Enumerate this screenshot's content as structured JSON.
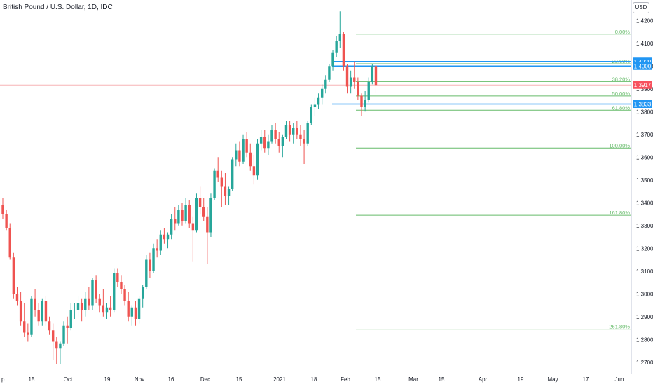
{
  "header": {
    "title": "British Pound / U.S. Dollar, 1D, IDC",
    "currency_button": "USD"
  },
  "colors": {
    "up": "#26a69a",
    "down": "#ef5350",
    "fib": "#66bb6a",
    "level": "#2196f3",
    "last": "#f7525f"
  },
  "chart_data": {
    "type": "candlestick",
    "title": "British Pound / U.S. Dollar, 1D, IDC",
    "ylim": [
      1.265,
      1.429
    ],
    "y_ticks": [
      "1.4200",
      "1.4100",
      "1.4000",
      "1.3900",
      "1.3800",
      "1.3700",
      "1.3600",
      "1.3500",
      "1.3400",
      "1.3300",
      "1.3200",
      "1.3100",
      "1.3000",
      "1.2900",
      "1.2800",
      "1.2700"
    ],
    "x_ticks": [
      "p",
      "15",
      "Oct",
      "19",
      "Nov",
      "16",
      "Dec",
      "15",
      "2021",
      "18",
      "Feb",
      "15",
      "Mar",
      "15",
      "Apr",
      "19",
      "May",
      "17",
      "Jun"
    ],
    "candles": [
      [
        1.339,
        1.342,
        1.333,
        1.335
      ],
      [
        1.335,
        1.337,
        1.328,
        1.329
      ],
      [
        1.329,
        1.331,
        1.315,
        1.316
      ],
      [
        1.316,
        1.318,
        1.298,
        1.3
      ],
      [
        1.3,
        1.303,
        1.295,
        1.297
      ],
      [
        1.297,
        1.301,
        1.286,
        1.288
      ],
      [
        1.288,
        1.296,
        1.281,
        1.283
      ],
      [
        1.283,
        1.287,
        1.279,
        1.282
      ],
      [
        1.282,
        1.299,
        1.281,
        1.298
      ],
      [
        1.298,
        1.302,
        1.29,
        1.293
      ],
      [
        1.293,
        1.296,
        1.286,
        1.288
      ],
      [
        1.288,
        1.298,
        1.286,
        1.297
      ],
      [
        1.297,
        1.299,
        1.286,
        1.288
      ],
      [
        1.288,
        1.29,
        1.282,
        1.284
      ],
      [
        1.284,
        1.287,
        1.271,
        1.279
      ],
      [
        1.279,
        1.281,
        1.269,
        1.276
      ],
      [
        1.276,
        1.279,
        1.269,
        1.278
      ],
      [
        1.278,
        1.288,
        1.277,
        1.286
      ],
      [
        1.286,
        1.29,
        1.278,
        1.285
      ],
      [
        1.285,
        1.296,
        1.284,
        1.293
      ],
      [
        1.293,
        1.296,
        1.289,
        1.293
      ],
      [
        1.293,
        1.299,
        1.29,
        1.296
      ],
      [
        1.296,
        1.298,
        1.288,
        1.293
      ],
      [
        1.293,
        1.301,
        1.29,
        1.298
      ],
      [
        1.298,
        1.303,
        1.293,
        1.295
      ],
      [
        1.295,
        1.307,
        1.293,
        1.306
      ],
      [
        1.306,
        1.308,
        1.296,
        1.298
      ],
      [
        1.298,
        1.3,
        1.292,
        1.295
      ],
      [
        1.295,
        1.302,
        1.29,
        1.292
      ],
      [
        1.292,
        1.296,
        1.289,
        1.294
      ],
      [
        1.294,
        1.299,
        1.29,
        1.293
      ],
      [
        1.293,
        1.311,
        1.292,
        1.309
      ],
      [
        1.309,
        1.311,
        1.303,
        1.305
      ],
      [
        1.305,
        1.308,
        1.3,
        1.302
      ],
      [
        1.302,
        1.304,
        1.295,
        1.297
      ],
      [
        1.297,
        1.301,
        1.288,
        1.29
      ],
      [
        1.29,
        1.295,
        1.286,
        1.294
      ],
      [
        1.294,
        1.297,
        1.286,
        1.289
      ],
      [
        1.289,
        1.299,
        1.287,
        1.298
      ],
      [
        1.298,
        1.304,
        1.294,
        1.303
      ],
      [
        1.303,
        1.317,
        1.302,
        1.315
      ],
      [
        1.315,
        1.318,
        1.307,
        1.31
      ],
      [
        1.31,
        1.322,
        1.309,
        1.32
      ],
      [
        1.32,
        1.324,
        1.316,
        1.319
      ],
      [
        1.319,
        1.328,
        1.317,
        1.326
      ],
      [
        1.326,
        1.329,
        1.322,
        1.324
      ],
      [
        1.324,
        1.327,
        1.32,
        1.326
      ],
      [
        1.326,
        1.335,
        1.324,
        1.333
      ],
      [
        1.333,
        1.338,
        1.328,
        1.331
      ],
      [
        1.331,
        1.339,
        1.33,
        1.337
      ],
      [
        1.337,
        1.34,
        1.33,
        1.332
      ],
      [
        1.332,
        1.342,
        1.331,
        1.339
      ],
      [
        1.339,
        1.341,
        1.329,
        1.331
      ],
      [
        1.331,
        1.334,
        1.314,
        1.328
      ],
      [
        1.328,
        1.344,
        1.327,
        1.342
      ],
      [
        1.342,
        1.347,
        1.335,
        1.338
      ],
      [
        1.338,
        1.342,
        1.332,
        1.334
      ],
      [
        1.334,
        1.338,
        1.313,
        1.327
      ],
      [
        1.327,
        1.344,
        1.325,
        1.342
      ],
      [
        1.342,
        1.355,
        1.341,
        1.354
      ],
      [
        1.354,
        1.36,
        1.349,
        1.351
      ],
      [
        1.351,
        1.354,
        1.338,
        1.347
      ],
      [
        1.347,
        1.353,
        1.339,
        1.343
      ],
      [
        1.343,
        1.347,
        1.339,
        1.346
      ],
      [
        1.346,
        1.36,
        1.345,
        1.359
      ],
      [
        1.359,
        1.366,
        1.356,
        1.363
      ],
      [
        1.363,
        1.367,
        1.356,
        1.358
      ],
      [
        1.358,
        1.37,
        1.357,
        1.368
      ],
      [
        1.368,
        1.371,
        1.36,
        1.362
      ],
      [
        1.362,
        1.366,
        1.354,
        1.356
      ],
      [
        1.356,
        1.361,
        1.348,
        1.352
      ],
      [
        1.352,
        1.368,
        1.35,
        1.366
      ],
      [
        1.366,
        1.372,
        1.363,
        1.369
      ],
      [
        1.369,
        1.372,
        1.362,
        1.364
      ],
      [
        1.364,
        1.37,
        1.361,
        1.367
      ],
      [
        1.367,
        1.374,
        1.366,
        1.372
      ],
      [
        1.372,
        1.375,
        1.366,
        1.368
      ],
      [
        1.368,
        1.371,
        1.362,
        1.365
      ],
      [
        1.365,
        1.37,
        1.36,
        1.369
      ],
      [
        1.369,
        1.376,
        1.368,
        1.374
      ],
      [
        1.374,
        1.376,
        1.367,
        1.37
      ],
      [
        1.37,
        1.375,
        1.366,
        1.373
      ],
      [
        1.373,
        1.376,
        1.368,
        1.37
      ],
      [
        1.37,
        1.374,
        1.365,
        1.368
      ],
      [
        1.368,
        1.372,
        1.357,
        1.366
      ],
      [
        1.366,
        1.376,
        1.365,
        1.375
      ],
      [
        1.375,
        1.383,
        1.374,
        1.382
      ],
      [
        1.382,
        1.386,
        1.378,
        1.383
      ],
      [
        1.383,
        1.388,
        1.381,
        1.386
      ],
      [
        1.386,
        1.392,
        1.383,
        1.39
      ],
      [
        1.39,
        1.396,
        1.388,
        1.394
      ],
      [
        1.394,
        1.401,
        1.393,
        1.4
      ],
      [
        1.4,
        1.407,
        1.398,
        1.406
      ],
      [
        1.406,
        1.413,
        1.404,
        1.411
      ],
      [
        1.411,
        1.424,
        1.408,
        1.414
      ],
      [
        1.414,
        1.415,
        1.398,
        1.4
      ],
      [
        1.4,
        1.401,
        1.388,
        1.391
      ],
      [
        1.391,
        1.398,
        1.388,
        1.395
      ],
      [
        1.395,
        1.402,
        1.39,
        1.393
      ],
      [
        1.393,
        1.395,
        1.385,
        1.387
      ],
      [
        1.387,
        1.388,
        1.378,
        1.382
      ],
      [
        1.382,
        1.389,
        1.38,
        1.385
      ],
      [
        1.385,
        1.395,
        1.384,
        1.393
      ],
      [
        1.393,
        1.401,
        1.392,
        1.4
      ],
      [
        1.4,
        1.401,
        1.388,
        1.3917
      ]
    ],
    "fib_levels": [
      {
        "label": "0.00%",
        "value": 1.414
      },
      {
        "label": "23.60%",
        "value": 1.401
      },
      {
        "label": "38.20%",
        "value": 1.3932
      },
      {
        "label": "50.00%",
        "value": 1.3869
      },
      {
        "label": "61.80%",
        "value": 1.3806
      },
      {
        "label": "100.00%",
        "value": 1.364
      },
      {
        "label": "161.80%",
        "value": 1.3345
      },
      {
        "label": "261.80%",
        "value": 1.2845
      }
    ],
    "horizontal_levels": [
      {
        "label": "1.4020",
        "value": 1.402
      },
      {
        "label": "1.4000",
        "value": 1.4
      },
      {
        "label": "1.3833",
        "value": 1.3833
      }
    ],
    "last_price": {
      "label": "1.3917",
      "value": 1.3917
    },
    "grid": false
  }
}
